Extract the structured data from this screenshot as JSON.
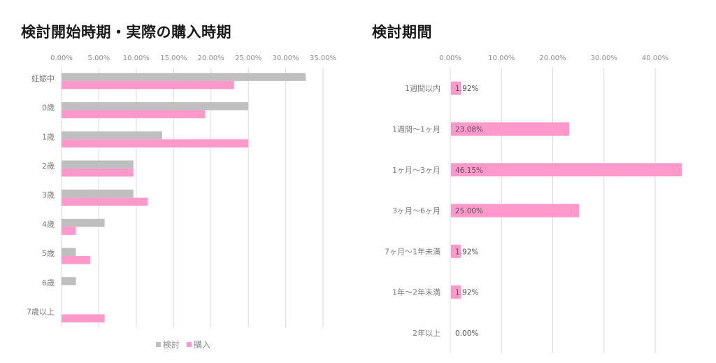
{
  "chart_data": [
    {
      "type": "bar",
      "orientation": "horizontal",
      "title": "検討開始時期・実際の購入時期",
      "categories": [
        "妊娠中",
        "0歳",
        "1歳",
        "2歳",
        "3歳",
        "4歳",
        "5歳",
        "6歳",
        "7歳以上"
      ],
      "series": [
        {
          "name": "検討",
          "color": "#bfbfbf",
          "values": [
            32.69,
            25.0,
            13.46,
            9.62,
            9.62,
            5.77,
            1.92,
            1.92,
            0.0
          ]
        },
        {
          "name": "購入",
          "color": "#ff99cc",
          "values": [
            23.08,
            19.23,
            25.0,
            9.62,
            11.54,
            1.92,
            3.85,
            0.0,
            5.77
          ]
        }
      ],
      "xlim": [
        0,
        35
      ],
      "xticks": [
        0,
        5,
        10,
        15,
        20,
        25,
        30,
        35
      ],
      "xtick_labels": [
        "0.00%",
        "5.00%",
        "10.00%",
        "15.00%",
        "20.00%",
        "25.00%",
        "30.00%",
        "35.00%"
      ],
      "axis_position": "top",
      "grid": true,
      "legend": {
        "position": "bottom",
        "entries": [
          "検討",
          "購入"
        ]
      },
      "xlabel": "",
      "ylabel": ""
    },
    {
      "type": "bar",
      "orientation": "horizontal",
      "title": "検討期間",
      "categories": [
        "1週間以内",
        "1週間～1ヶ月",
        "1ヶ月～3ヶ月",
        "3ヶ月～6ヶ月",
        "7ヶ月～1年未満",
        "1年～2年未満",
        "2年以上"
      ],
      "series": [
        {
          "name": "検討期間",
          "color": "#ff99cc",
          "values": [
            1.92,
            23.08,
            46.15,
            25.0,
            1.92,
            1.92,
            0.0
          ]
        }
      ],
      "data_labels": [
        "1.92%",
        "23.08%",
        "46.15%",
        "25.00%",
        "1.92%",
        "1.92%",
        "0.00%"
      ],
      "xlim": [
        0,
        45
      ],
      "xticks": [
        0,
        10,
        20,
        30,
        40
      ],
      "xtick_labels": [
        "0.00%",
        "10.00%",
        "20.00%",
        "30.00%",
        "40.00%"
      ],
      "axis_position": "top",
      "grid": true,
      "xlabel": "",
      "ylabel": ""
    }
  ]
}
